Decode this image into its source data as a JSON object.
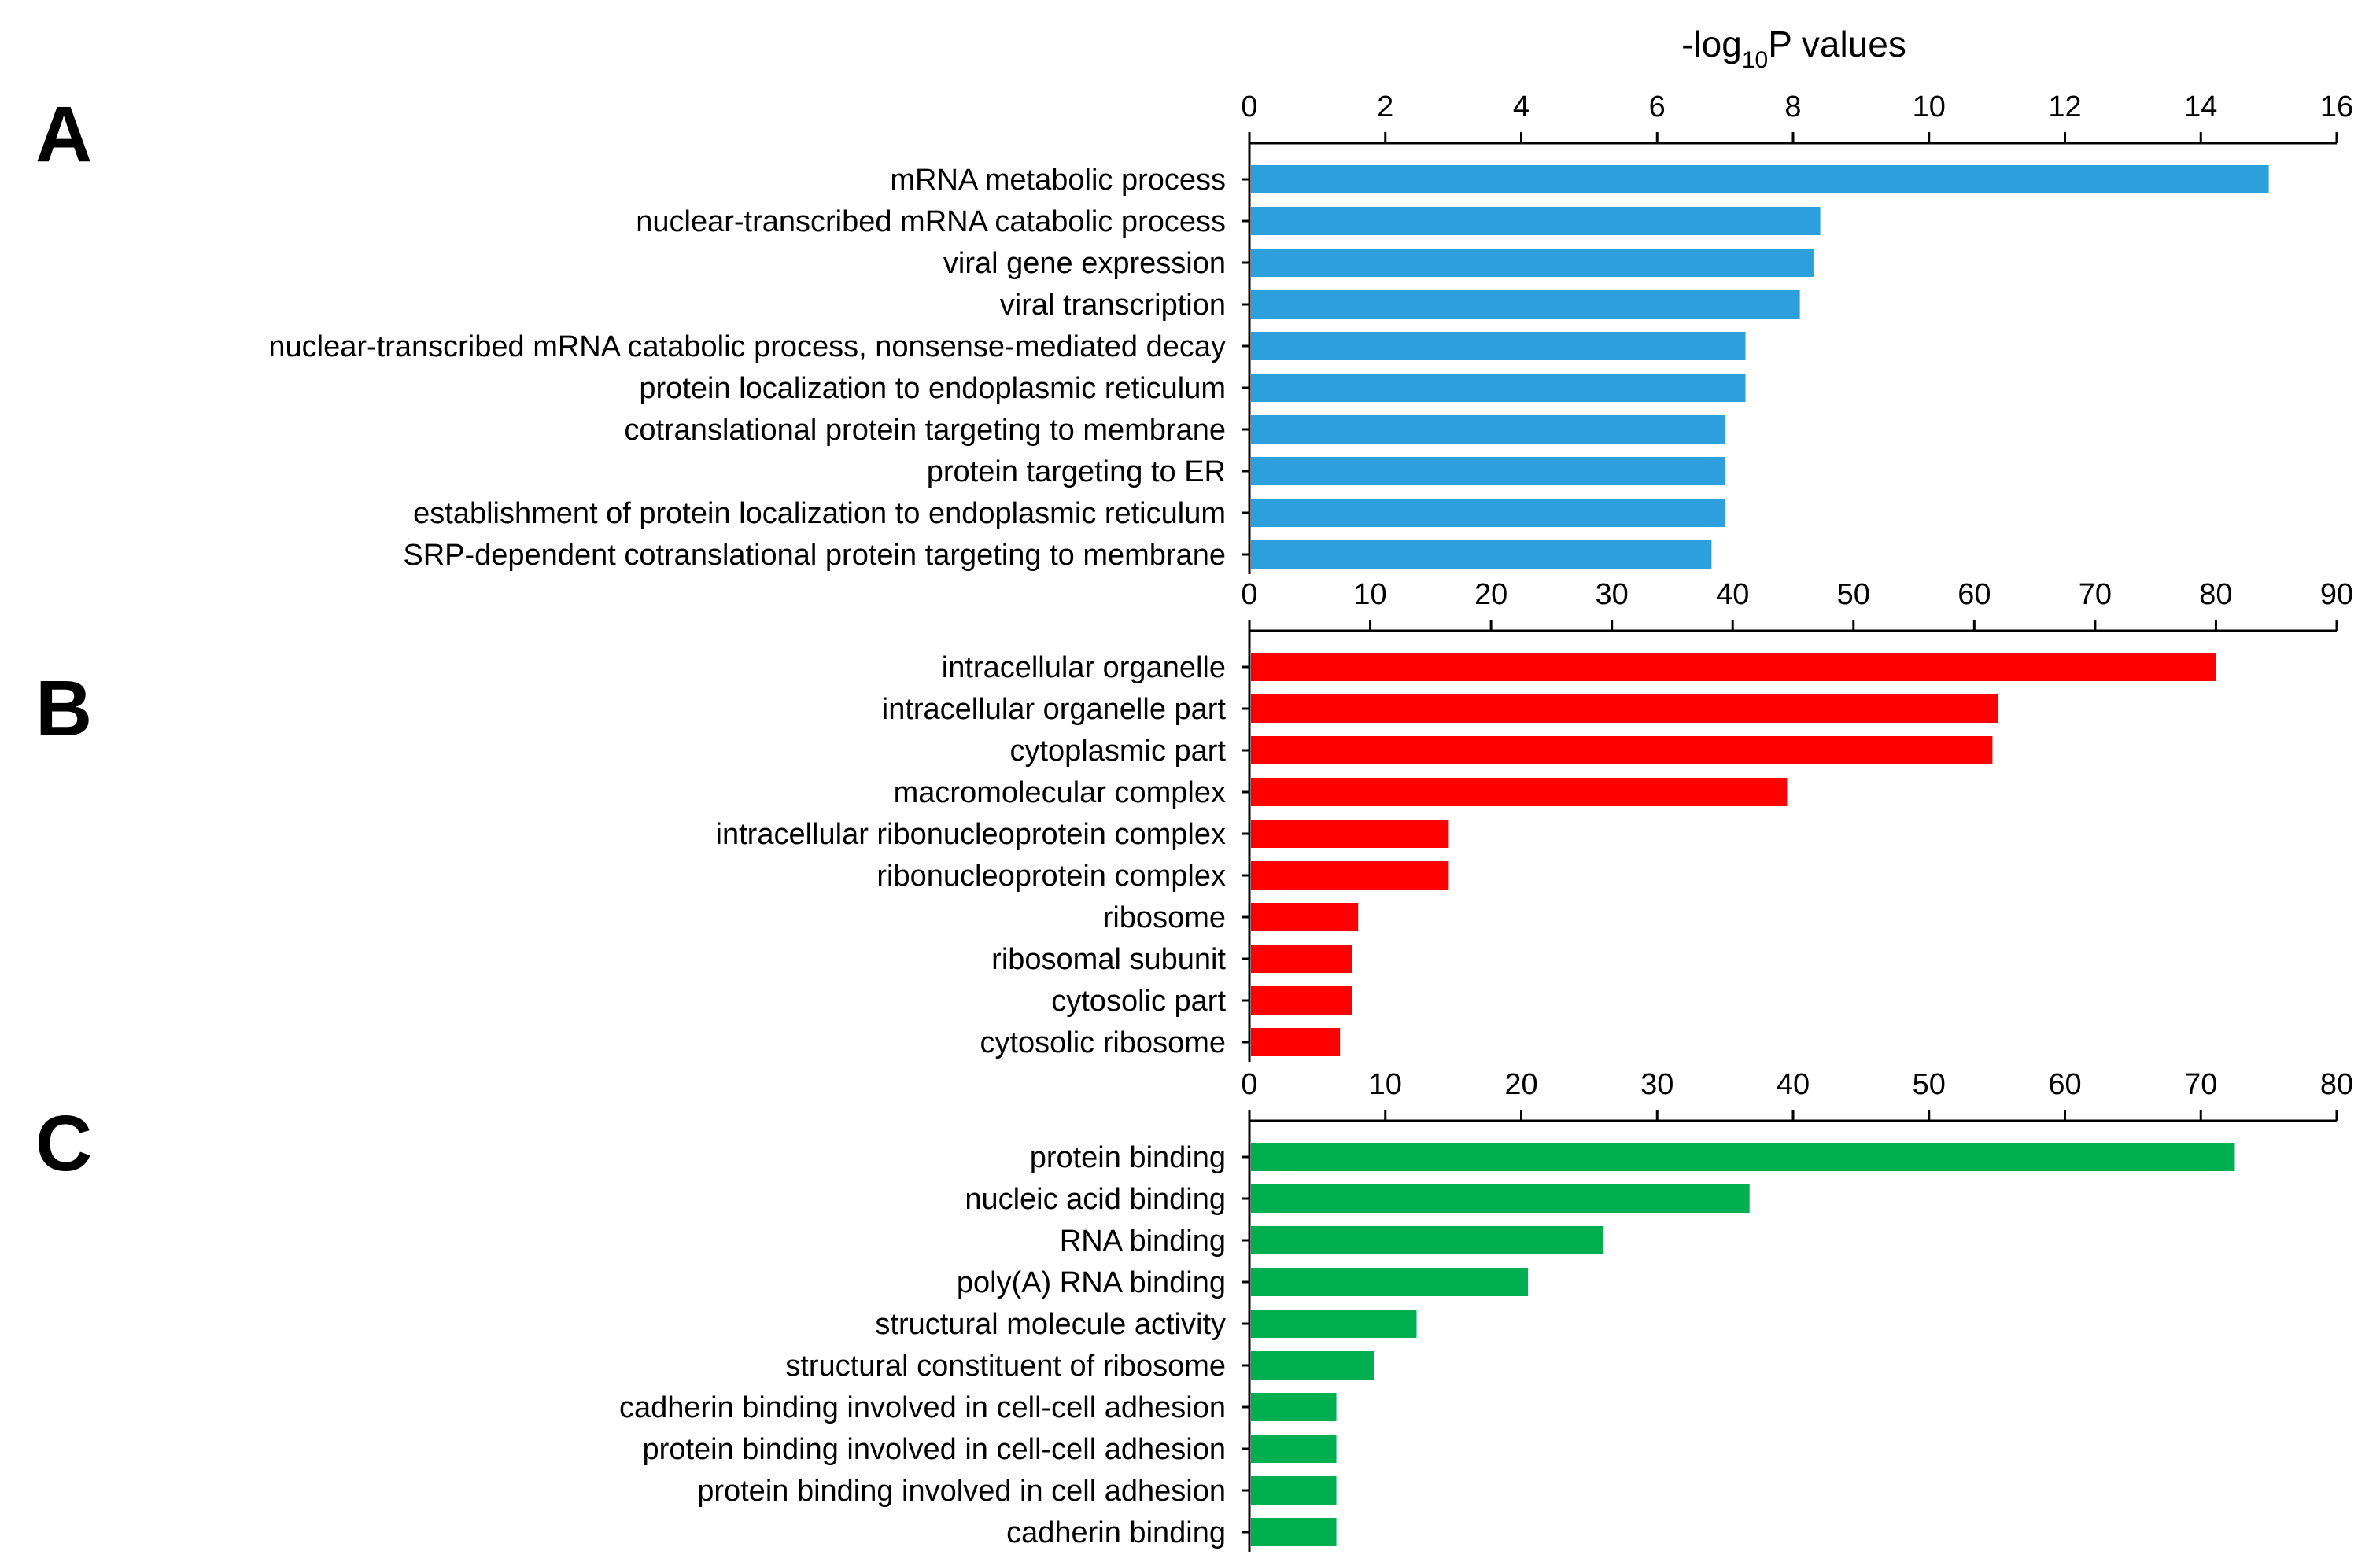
{
  "chart_data": [
    {
      "panel": "A",
      "type": "bar",
      "orientation": "horizontal",
      "title": "-log10P values",
      "title_base": "-log",
      "title_sub": "10",
      "title_rest": "P values",
      "color": "#2E9FDD",
      "xlim": [
        0,
        16
      ],
      "xticks": [
        0,
        2,
        4,
        6,
        8,
        10,
        12,
        14,
        16
      ],
      "categories": [
        "mRNA metabolic process",
        "nuclear-transcribed mRNA catabolic process",
        "viral gene expression",
        "viral transcription",
        "nuclear-transcribed mRNA catabolic process, nonsense-mediated decay",
        "protein localization to endoplasmic reticulum",
        "cotranslational protein targeting to membrane",
        "protein targeting to ER",
        "establishment of protein localization to endoplasmic reticulum",
        "SRP-dependent cotranslational protein targeting to membrane"
      ],
      "values": [
        15.0,
        8.4,
        8.3,
        8.1,
        7.3,
        7.3,
        7.0,
        7.0,
        7.0,
        6.8
      ]
    },
    {
      "panel": "B",
      "type": "bar",
      "orientation": "horizontal",
      "color": "#FF0000",
      "xlim": [
        0,
        90
      ],
      "xticks": [
        0,
        10,
        20,
        30,
        40,
        50,
        60,
        70,
        80,
        90
      ],
      "categories": [
        "intracellular organelle",
        "intracellular organelle part",
        "cytoplasmic part",
        "macromolecular complex",
        "intracellular ribonucleoprotein complex",
        "ribonucleoprotein complex",
        "ribosome",
        "ribosomal subunit",
        "cytosolic part",
        "cytosolic ribosome"
      ],
      "values": [
        80,
        62,
        61.5,
        44.5,
        16.5,
        16.5,
        9,
        8.5,
        8.5,
        7.5
      ]
    },
    {
      "panel": "C",
      "type": "bar",
      "orientation": "horizontal",
      "color": "#00B050",
      "xlim": [
        0,
        80
      ],
      "xticks": [
        0,
        10,
        20,
        30,
        40,
        50,
        60,
        70,
        80
      ],
      "categories": [
        "protein binding",
        "nucleic acid binding",
        "RNA binding",
        "poly(A) RNA binding",
        "structural molecule activity",
        "structural constituent of ribosome",
        "cadherin binding involved in cell-cell adhesion",
        "protein binding involved in cell-cell adhesion",
        "protein binding involved in cell adhesion",
        "cadherin binding"
      ],
      "values": [
        72.5,
        36.8,
        26,
        20.5,
        12.3,
        9.2,
        6.4,
        6.4,
        6.4,
        6.4
      ]
    }
  ]
}
